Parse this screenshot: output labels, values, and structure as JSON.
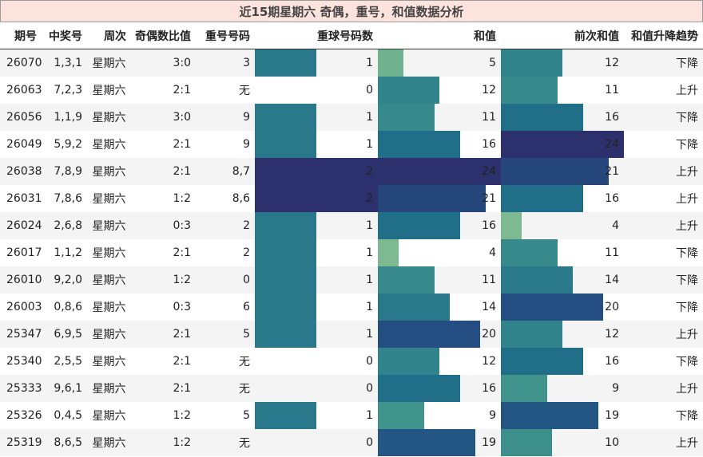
{
  "title": "近15期星期六 奇偶，重号，和值数据分析",
  "headers": [
    "期号",
    "中奖号",
    "周次",
    "奇偶数比值",
    "重号号码",
    "重球号码数",
    "和值",
    "前次和值",
    "和值升降趋势"
  ],
  "chart_data": {
    "type": "table",
    "bar_columns": {
      "repeat_count_max": 2,
      "sum_max": 24
    },
    "rows": [
      {
        "issue": "26070",
        "numbers": "1,3,1",
        "weekday": "星期六",
        "odd_even": "3:0",
        "repeat_nums": "3",
        "repeat_count": 1,
        "sum": 5,
        "prev_sum": 12,
        "trend": "下降"
      },
      {
        "issue": "26063",
        "numbers": "7,2,3",
        "weekday": "星期六",
        "odd_even": "2:1",
        "repeat_nums": "无",
        "repeat_count": 0,
        "sum": 12,
        "prev_sum": 11,
        "trend": "上升"
      },
      {
        "issue": "26056",
        "numbers": "1,1,9",
        "weekday": "星期六",
        "odd_even": "3:0",
        "repeat_nums": "9",
        "repeat_count": 1,
        "sum": 11,
        "prev_sum": 16,
        "trend": "下降"
      },
      {
        "issue": "26049",
        "numbers": "5,9,2",
        "weekday": "星期六",
        "odd_even": "2:1",
        "repeat_nums": "9",
        "repeat_count": 1,
        "sum": 16,
        "prev_sum": 24,
        "trend": "下降"
      },
      {
        "issue": "26038",
        "numbers": "7,8,9",
        "weekday": "星期六",
        "odd_even": "2:1",
        "repeat_nums": "8,7",
        "repeat_count": 2,
        "sum": 24,
        "prev_sum": 21,
        "trend": "上升"
      },
      {
        "issue": "26031",
        "numbers": "7,8,6",
        "weekday": "星期六",
        "odd_even": "1:2",
        "repeat_nums": "8,6",
        "repeat_count": 2,
        "sum": 21,
        "prev_sum": 16,
        "trend": "上升"
      },
      {
        "issue": "26024",
        "numbers": "2,6,8",
        "weekday": "星期六",
        "odd_even": "0:3",
        "repeat_nums": "2",
        "repeat_count": 1,
        "sum": 16,
        "prev_sum": 4,
        "trend": "上升"
      },
      {
        "issue": "26017",
        "numbers": "1,1,2",
        "weekday": "星期六",
        "odd_even": "2:1",
        "repeat_nums": "2",
        "repeat_count": 1,
        "sum": 4,
        "prev_sum": 11,
        "trend": "下降"
      },
      {
        "issue": "26010",
        "numbers": "9,2,0",
        "weekday": "星期六",
        "odd_even": "1:2",
        "repeat_nums": "0",
        "repeat_count": 1,
        "sum": 11,
        "prev_sum": 14,
        "trend": "下降"
      },
      {
        "issue": "26003",
        "numbers": "0,8,6",
        "weekday": "星期六",
        "odd_even": "0:3",
        "repeat_nums": "6",
        "repeat_count": 1,
        "sum": 14,
        "prev_sum": 20,
        "trend": "下降"
      },
      {
        "issue": "25347",
        "numbers": "6,9,5",
        "weekday": "星期六",
        "odd_even": "2:1",
        "repeat_nums": "5",
        "repeat_count": 1,
        "sum": 20,
        "prev_sum": 12,
        "trend": "上升"
      },
      {
        "issue": "25340",
        "numbers": "2,5,5",
        "weekday": "星期六",
        "odd_even": "2:1",
        "repeat_nums": "无",
        "repeat_count": 0,
        "sum": 12,
        "prev_sum": 16,
        "trend": "下降"
      },
      {
        "issue": "25333",
        "numbers": "9,6,1",
        "weekday": "星期六",
        "odd_even": "2:1",
        "repeat_nums": "无",
        "repeat_count": 0,
        "sum": 16,
        "prev_sum": 9,
        "trend": "上升"
      },
      {
        "issue": "25326",
        "numbers": "0,4,5",
        "weekday": "星期六",
        "odd_even": "1:2",
        "repeat_nums": "5",
        "repeat_count": 1,
        "sum": 9,
        "prev_sum": 19,
        "trend": "下降"
      },
      {
        "issue": "25319",
        "numbers": "8,6,5",
        "weekday": "星期六",
        "odd_even": "1:2",
        "repeat_nums": "无",
        "repeat_count": 0,
        "sum": 19,
        "prev_sum": 10,
        "trend": "上升"
      }
    ]
  }
}
